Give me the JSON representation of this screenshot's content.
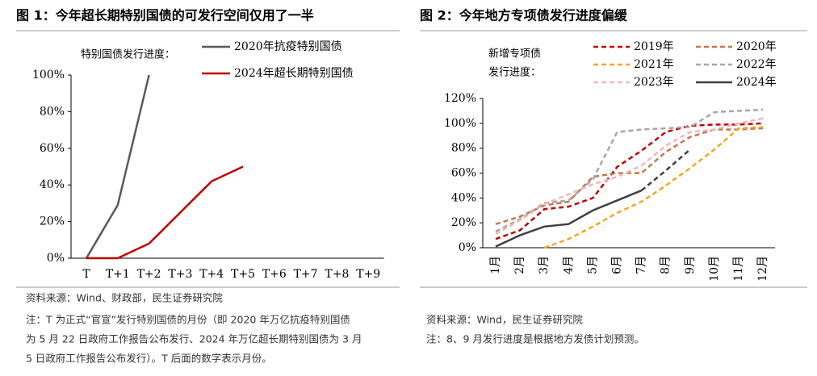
{
  "chart_data": [
    {
      "type": "line",
      "title": "图 1：今年超长期特别国债的可发行空间仅用了一半",
      "annotation": [
        "特别国债发行进度："
      ],
      "categories": [
        "T",
        "T+1",
        "T+2",
        "T+3",
        "T+4",
        "T+5",
        "T+6",
        "T+7",
        "T+8",
        "T+9"
      ],
      "series": [
        {
          "name": "2020年抗疫特别国债",
          "color": "#595959",
          "dash": false,
          "values": [
            0,
            29,
            100,
            null,
            null,
            null,
            null,
            null,
            null,
            null
          ]
        },
        {
          "name": "2024年超长期特别国债",
          "color": "#c00000",
          "dash": false,
          "values": [
            0,
            0,
            8,
            25,
            42,
            50,
            null,
            null,
            null,
            null
          ]
        }
      ],
      "ylim": [
        0,
        100
      ],
      "yticks": [
        {
          "value": 0,
          "label": "0%"
        },
        {
          "value": 20,
          "label": "20%"
        },
        {
          "value": 40,
          "label": "40%"
        },
        {
          "value": 60,
          "label": "60%"
        },
        {
          "value": 80,
          "label": "80%"
        },
        {
          "value": 100,
          "label": "100%"
        }
      ],
      "notes": [
        "资料来源：Wind、财政部，民生证券研究院",
        "注：T 为正式“官宣”发行特别国债的月份（即 2020 年万亿抗疫特别国债",
        "为 5 月 22 日政府工作报告公布发行、2024 年万亿超长期特别国债为 3 月",
        "5 日政府工作报告公布发行）。T 后面的数字表示月份。"
      ]
    },
    {
      "type": "line",
      "title": "图 2：今年地方专项债发行进度偏缓",
      "annotation": [
        "新增专项债",
        "发行进度："
      ],
      "categories": [
        "1月",
        "2月",
        "3月",
        "4月",
        "5月",
        "6月",
        "7月",
        "8月",
        "9月",
        "10月",
        "11月",
        "12月"
      ],
      "series": [
        {
          "name": "2019年",
          "color": "#c00000",
          "dash": true,
          "values": [
            7,
            14,
            31,
            33,
            40,
            65,
            78,
            93,
            98,
            99,
            99,
            100
          ]
        },
        {
          "name": "2020年",
          "color": "#c07850",
          "dash": true,
          "values": [
            19,
            25,
            34,
            37,
            57,
            60,
            60,
            77,
            89,
            95,
            95,
            96
          ]
        },
        {
          "name": "2021年",
          "color": "#f5a623",
          "dash": true,
          "values": [
            null,
            null,
            0,
            7,
            17,
            28,
            37,
            50,
            64,
            79,
            96,
            97
          ]
        },
        {
          "name": "2022年",
          "color": "#a6a6a6",
          "dash": true,
          "values": [
            13,
            23,
            36,
            38,
            55,
            93,
            95,
            96,
            97,
            109,
            110,
            111
          ]
        },
        {
          "name": "2023年",
          "color": "#f2b8b8",
          "dash": true,
          "values": [
            11,
            22,
            35,
            43,
            51,
            57,
            66,
            82,
            93,
            95,
            100,
            104
          ]
        },
        {
          "name": "2024年",
          "color": "#404040",
          "dash": false,
          "dash_from_category": "7月",
          "values": [
            1,
            10,
            17,
            19,
            30,
            38,
            46,
            62,
            79,
            null,
            null,
            null
          ]
        }
      ],
      "ylim": [
        0,
        120
      ],
      "yticks": [
        {
          "value": 0,
          "label": "0%"
        },
        {
          "value": 20,
          "label": "20%"
        },
        {
          "value": 40,
          "label": "40%"
        },
        {
          "value": 60,
          "label": "60%"
        },
        {
          "value": 80,
          "label": "80%"
        },
        {
          "value": 100,
          "label": "100%"
        },
        {
          "value": 120,
          "label": "120%"
        }
      ],
      "notes": [
        "资料来源：Wind，民生证券研究院",
        "注：8、9 月发行进度是根据地方发债计划预测。"
      ]
    }
  ]
}
